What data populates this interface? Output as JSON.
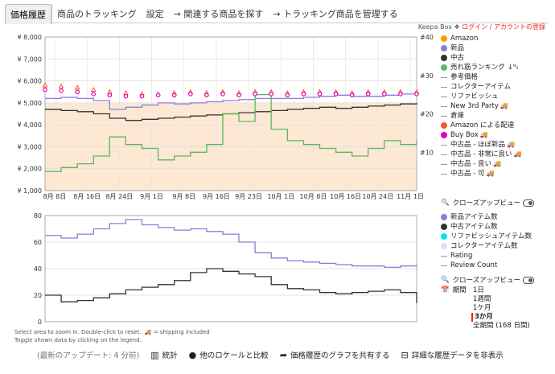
{
  "tabs": [
    "価格履歴",
    "商品のトラッキング",
    "設定",
    "→ 関連する商品を探す",
    "→ トラッキング商品を管理する"
  ],
  "header": {
    "brand": "Keepa Box",
    "login": "ログイン / アカウントの登録"
  },
  "legend_main": [
    {
      "label": "Amazon",
      "type": "dot",
      "color": "#f5a000"
    },
    {
      "label": "新品",
      "type": "dot",
      "color": "#8a7ddb"
    },
    {
      "label": "中古",
      "type": "dot",
      "color": "#333333"
    },
    {
      "label": "売れ筋ランキング",
      "type": "dot",
      "color": "#5cb85c",
      "suffix": "↓⁹₁"
    },
    {
      "label": "参考価格",
      "type": "dash"
    },
    {
      "label": "コレクターアイテム",
      "type": "dash"
    },
    {
      "label": "リファビッシュ",
      "type": "dash"
    },
    {
      "label": "New 3rd Party",
      "type": "dash",
      "truck": true
    },
    {
      "label": "倉庫",
      "type": "dash"
    },
    {
      "label": "Amazon による配達",
      "type": "dot",
      "color": "#f05a28"
    },
    {
      "label": "Buy Box",
      "type": "dot",
      "color": "#e200c8",
      "truck": true
    },
    {
      "label": "中古品 - ほぼ新品",
      "type": "dash",
      "truck": true
    },
    {
      "label": "中古品 - 非常に良い",
      "type": "dash",
      "truck": true
    },
    {
      "label": "中古品 - 良い",
      "type": "dash",
      "truck": true
    },
    {
      "label": "中古品 - 可",
      "type": "dash",
      "truck": true
    }
  ],
  "legend_sub": [
    {
      "label": "新品アイテム数",
      "type": "dot",
      "color": "#8a7ddb"
    },
    {
      "label": "中古アイテム数",
      "type": "dot",
      "color": "#333333"
    },
    {
      "label": "リファビッシュアイテム数",
      "type": "dot",
      "color": "#00e5ee"
    },
    {
      "label": "コレクターアイテム数",
      "type": "dot",
      "color": "#d8e4f8"
    },
    {
      "label": "Rating",
      "type": "dash"
    },
    {
      "label": "Review Count",
      "type": "dash"
    }
  ],
  "closeup": "クローズアップビュー",
  "range": {
    "label": "期間",
    "options": [
      "1日",
      "1週間",
      "1ケ月",
      "3か月",
      "全期間 (168 日間)"
    ],
    "selected": 3
  },
  "note": [
    "Select area to zoom in. Double-click to reset.",
    "🚚 = shipping included",
    "Toggle shown data by clicking on the legend."
  ],
  "bottom": {
    "updated": "(最新のアップデート: 4 分前)",
    "stats": "統計",
    "compare": "他のロケールと比較",
    "share": "価格履歴のグラフを共有する",
    "hide": "詳細な履歴データを非表示"
  },
  "chart_data": [
    {
      "type": "line",
      "y_ticks": [
        "¥ 1,000",
        "¥ 2,000",
        "¥ 3,000",
        "¥ 4,000",
        "¥ 5,000",
        "¥ 6,000",
        "¥ 7,000",
        "¥ 8,000"
      ],
      "y2_ticks": [
        "#10",
        "#20",
        "#30",
        "#40"
      ],
      "x_ticks": [
        "8月 8日",
        "8月 16日",
        "8月 24日",
        "9月 1日",
        "9月 8日",
        "9月 16日",
        "9月 23日",
        "10月 1日",
        "10月 8日",
        "10月 16日",
        "10月 24日",
        "11月 1日"
      ],
      "ylim": [
        1000,
        8000
      ],
      "y2lim": [
        0,
        40
      ],
      "series": [
        {
          "name": "新品",
          "color": "#8a7ddb",
          "values": [
            5200,
            5250,
            5200,
            5100,
            4700,
            4800,
            4900,
            5000,
            4950,
            5000,
            5050,
            5100,
            5150,
            5200,
            5200,
            5200,
            5250,
            5300,
            5350,
            5300,
            5300,
            5350,
            5400,
            5400
          ]
        },
        {
          "name": "中古",
          "color": "#333333",
          "values": [
            4700,
            4650,
            4600,
            4500,
            4300,
            4200,
            4250,
            4300,
            4350,
            4400,
            4450,
            4500,
            4550,
            4600,
            4650,
            4700,
            4750,
            4800,
            4750,
            4800,
            4850,
            4900,
            4950,
            5000
          ]
        },
        {
          "name": "売れ筋ランキング",
          "color": "#5cb85c",
          "values": [
            5,
            6,
            7,
            9,
            14,
            12,
            11,
            8,
            9,
            10,
            12,
            20,
            18,
            25,
            16,
            13,
            12,
            11,
            10,
            9,
            11,
            13,
            12,
            13
          ]
        },
        {
          "name": "Amazon による配達",
          "color": "#f05a28",
          "values": [
            5800,
            5750,
            5700,
            5600,
            5500,
            5450,
            5400,
            5400,
            5450,
            5500,
            5450,
            5500,
            5450,
            5500,
            5500,
            5450,
            5500,
            5500,
            5500,
            5450,
            5500,
            5500,
            5500,
            5500
          ]
        },
        {
          "name": "Buy Box",
          "color": "#e200c8",
          "values": [
            5600,
            5550,
            5500,
            5400,
            5350,
            5300,
            5300,
            5350,
            5350,
            5400,
            5350,
            5400,
            5350,
            5400,
            5400,
            5350,
            5400,
            5400,
            5400,
            5350,
            5400,
            5400,
            5400,
            5400
          ]
        }
      ]
    },
    {
      "type": "line",
      "y_ticks": [
        "0",
        "20",
        "40",
        "60",
        "80"
      ],
      "ylim": [
        0,
        80
      ],
      "series": [
        {
          "name": "新品アイテム数",
          "color": "#8a7ddb",
          "values": [
            65,
            63,
            66,
            70,
            74,
            77,
            73,
            71,
            69,
            70,
            68,
            66,
            60,
            52,
            48,
            46,
            45,
            44,
            43,
            42,
            42,
            41,
            42,
            43
          ]
        },
        {
          "name": "中古アイテム数",
          "color": "#333333",
          "values": [
            20,
            15,
            16,
            18,
            21,
            24,
            26,
            28,
            31,
            37,
            40,
            38,
            36,
            34,
            28,
            25,
            24,
            22,
            21,
            22,
            23,
            24,
            22,
            14
          ]
        }
      ]
    }
  ]
}
